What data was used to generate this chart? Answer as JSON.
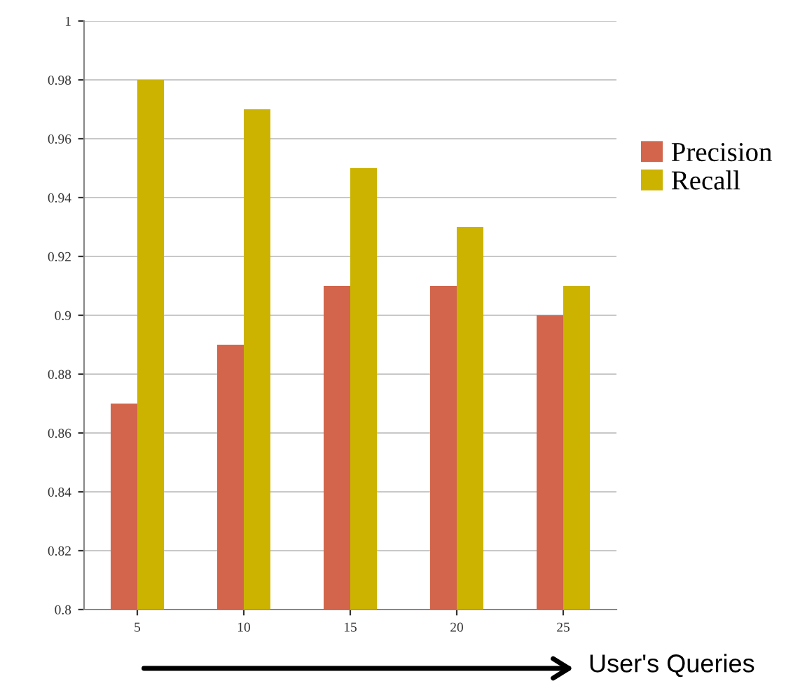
{
  "chart_data": {
    "type": "bar",
    "xlabel": "User's Queries",
    "categories": [
      "5",
      "10",
      "15",
      "20",
      "25"
    ],
    "series": [
      {
        "name": "Precision",
        "color": "#d2654b",
        "values": [
          0.87,
          0.89,
          0.91,
          0.91,
          0.9
        ]
      },
      {
        "name": "Recall",
        "color": "#cbb300",
        "values": [
          0.98,
          0.97,
          0.95,
          0.93,
          0.91
        ]
      }
    ],
    "ylim": [
      0.8,
      1
    ],
    "yticks": [
      0.8,
      0.82,
      0.84,
      0.86,
      0.88,
      0.9,
      0.92,
      0.94,
      0.96,
      0.98,
      1
    ],
    "grid": "y",
    "legend": "right"
  }
}
